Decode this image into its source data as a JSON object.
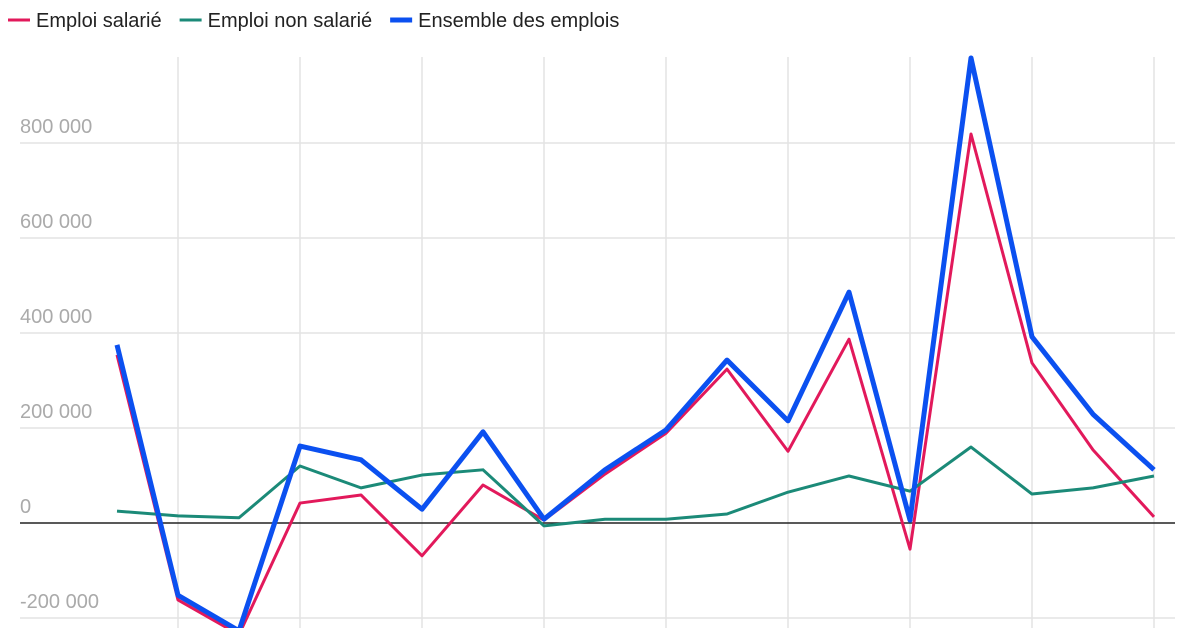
{
  "chart_data": {
    "type": "line",
    "categories": [
      null,
      null,
      null,
      null,
      null,
      null,
      null,
      null,
      null,
      null,
      null,
      null,
      null,
      null,
      null,
      null,
      null,
      null
    ],
    "series": [
      {
        "name": "Emploi salarié",
        "color": "#e2195b",
        "values": [
          354000,
          -162000,
          -235000,
          42000,
          59000,
          -69000,
          80000,
          6000,
          103000,
          189000,
          324000,
          151000,
          387000,
          -55000,
          819000,
          337000,
          154000,
          13000
        ]
      },
      {
        "name": "Emploi non salarié",
        "color": "#1b8a78",
        "values": [
          25000,
          15000,
          11000,
          120000,
          74000,
          101000,
          112000,
          -6000,
          8000,
          8000,
          19000,
          65000,
          99000,
          67000,
          160000,
          61000,
          74000,
          99000
        ]
      },
      {
        "name": "Ensemble des emplois",
        "color": "#0b50f0",
        "values": [
          375000,
          -152000,
          -227000,
          162000,
          133000,
          29000,
          192000,
          8000,
          112000,
          196000,
          343000,
          215000,
          486000,
          6000,
          979000,
          392000,
          229000,
          112000
        ]
      }
    ],
    "ylim": [
      -221000,
      981000
    ],
    "yticks": [
      {
        "value": -200000,
        "label": "-200 000"
      },
      0,
      {
        "value": 200000,
        "label": "200 000"
      },
      {
        "value": 400000,
        "label": "400 000"
      },
      {
        "value": 600000,
        "label": "600 000"
      },
      {
        "value": 800000,
        "label": "800 000"
      }
    ],
    "grid": true
  }
}
